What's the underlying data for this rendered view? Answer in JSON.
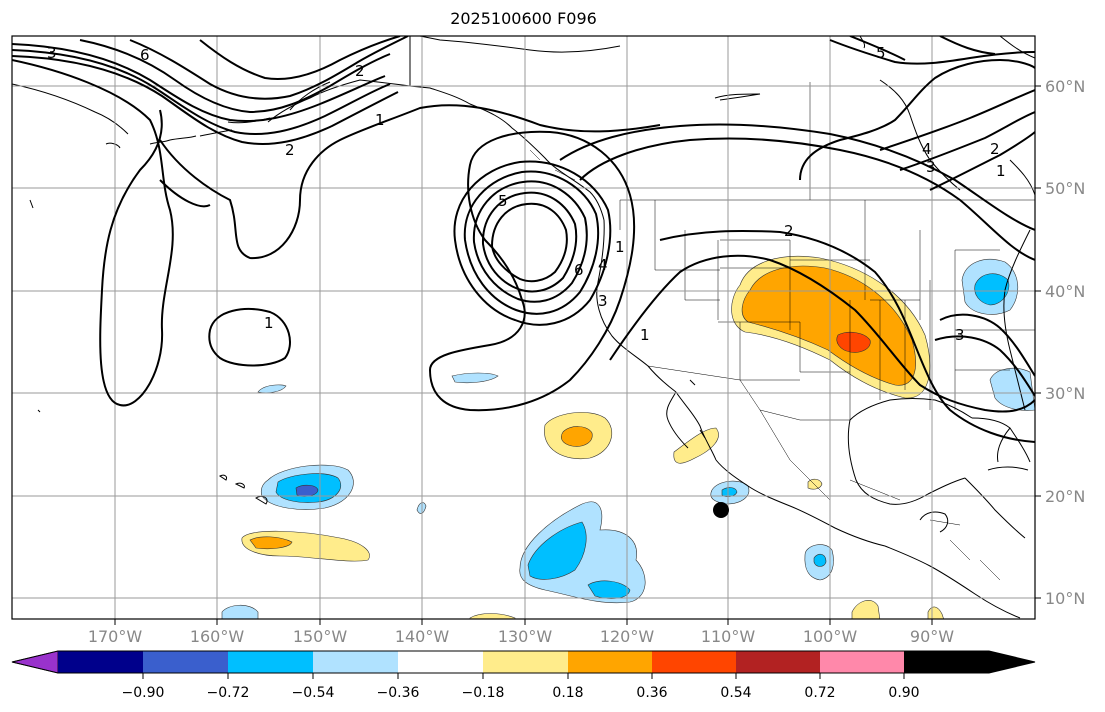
{
  "title": "2025100600 F096",
  "lat_labels": [
    "60°N",
    "50°N",
    "40°N",
    "30°N",
    "20°N",
    "10°N"
  ],
  "lon_labels": [
    "170°W",
    "160°W",
    "150°W",
    "140°W",
    "130°W",
    "120°W",
    "110°W",
    "100°W",
    "90°W"
  ],
  "colorbar": {
    "colors": [
      "#9932cc",
      "#00008b",
      "#3a5fcd",
      "#00bfff",
      "#b0e2ff",
      "#ffffff",
      "#ffec8b",
      "#ffa500",
      "#ff4500",
      "#b22222",
      "#ff88aa"
    ],
    "tick_labels": [
      "−0.90",
      "−0.72",
      "−0.54",
      "−0.36",
      "−0.18",
      "0.18",
      "0.36",
      "0.54",
      "0.72",
      "0.90"
    ]
  },
  "contour_labels": [
    "3",
    "6",
    "2",
    "1",
    "2",
    "1",
    "5",
    "6",
    "4",
    "3",
    "1",
    "2",
    "5",
    "4",
    "3",
    "2",
    "1",
    "3",
    "1"
  ],
  "storm_marker": {
    "lon": -110.8,
    "lat": 18.7
  }
}
